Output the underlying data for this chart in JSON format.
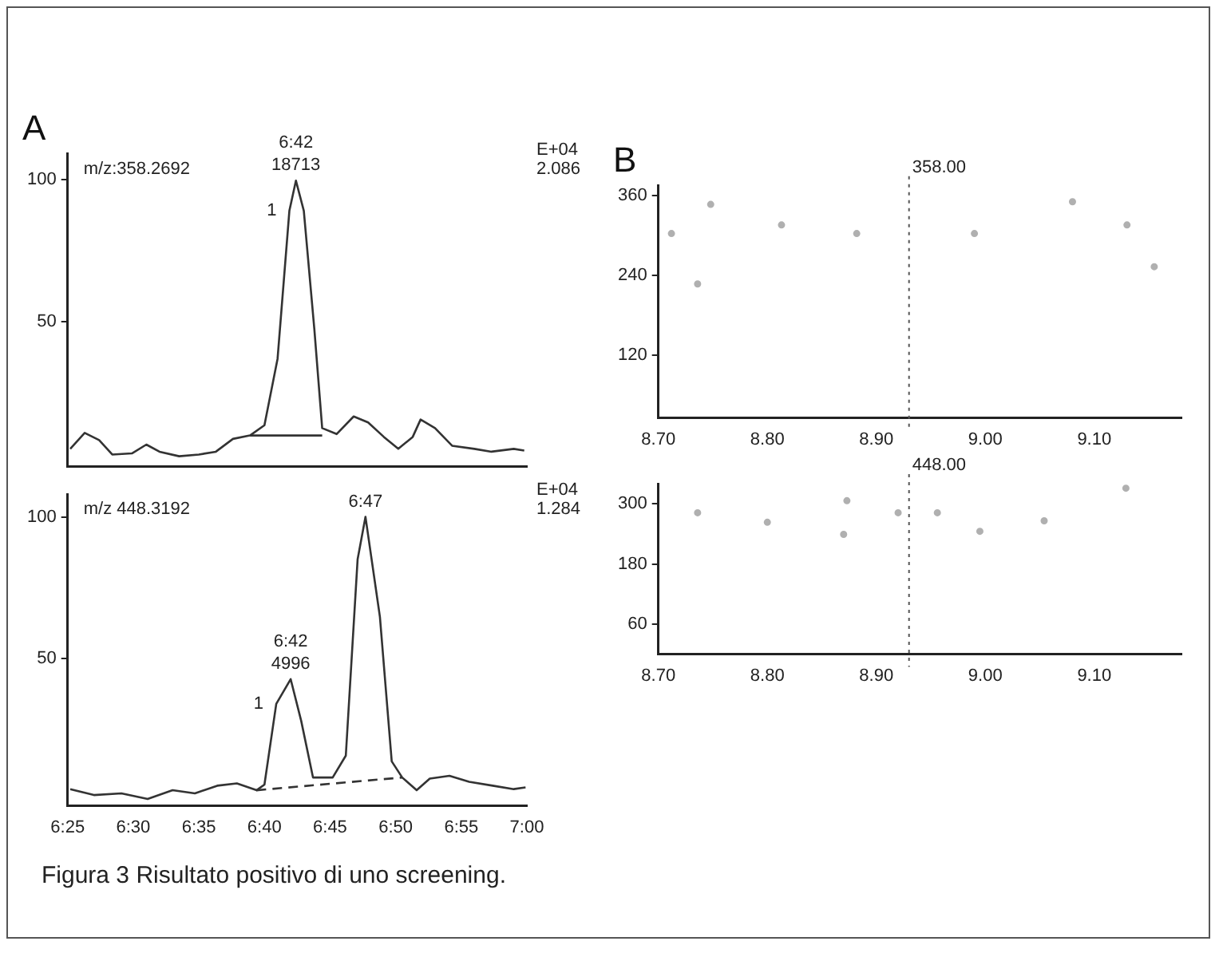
{
  "chart_data": [
    {
      "type": "line",
      "title": "A",
      "annotations": [
        "m/z:358.2692",
        "E+04",
        "2.086",
        {
          "text": "6:42",
          "x": 402.4,
          "y": 99.6
        },
        {
          "text": "18713",
          "x": 402.4,
          "y": 99.6
        },
        {
          "text": "1",
          "x": 401.9,
          "y": 89
        }
      ],
      "xlim": [
        385,
        420
      ],
      "xticks": [
        {
          "value": 385,
          "label": null
        },
        {
          "value": 390,
          "label": null
        },
        {
          "value": 395,
          "label": null
        },
        {
          "value": 400,
          "label": null
        },
        {
          "value": 405,
          "label": null
        },
        {
          "value": 410,
          "label": null
        },
        {
          "value": 415,
          "label": null
        },
        {
          "value": 420,
          "label": null
        }
      ],
      "ylim": [
        -1,
        109
      ],
      "yticks": [
        50,
        100
      ],
      "tick_labels": "y",
      "grid": false,
      "legend": false,
      "marker": "none",
      "series": [
        {
          "color": "#333333",
          "x": [
            385.2,
            386.3,
            387.4,
            388.4,
            389.9,
            391,
            392,
            393.5,
            395,
            396.3,
            397.6,
            398.9,
            400,
            401,
            401.9,
            402.4,
            403,
            403.8,
            404.4,
            405.5,
            406.8,
            407.9,
            409.1,
            410.2,
            411.3,
            411.9,
            413,
            414.3,
            416,
            417.3,
            419,
            419.8
          ],
          "values": [
            5.3,
            10.9,
            8.4,
            3.3,
            3.7,
            6.8,
            4.3,
            2.7,
            3.3,
            4.3,
            8.8,
            10,
            13.6,
            37,
            89,
            99.6,
            89,
            47.5,
            12.6,
            10.5,
            16.7,
            14.6,
            9.5,
            5.3,
            9.5,
            15.6,
            12.6,
            6.4,
            5.3,
            4.3,
            5.3,
            4.7
          ]
        },
        {
          "color": "#333333",
          "x": [
            398.9,
            404.4
          ],
          "values": [
            10,
            10
          ]
        }
      ]
    },
    {
      "type": "line",
      "annotations": [
        "m/z 448.3192",
        "E+04",
        "1.284",
        {
          "text": "6:47",
          "x": 407.7,
          "y": 100
        },
        {
          "text": "6:42",
          "x": 402,
          "y": 42.7
        },
        {
          "text": "4996",
          "x": 402,
          "y": 42.7
        },
        {
          "text": "1",
          "x": 400.9,
          "y": 34
        }
      ],
      "xlim": [
        385,
        420
      ],
      "xticks": [
        {
          "value": 385,
          "label": "6:25"
        },
        {
          "value": 390,
          "label": "6:30"
        },
        {
          "value": 395,
          "label": "6:35"
        },
        {
          "value": 400,
          "label": "6:40"
        },
        {
          "value": 405,
          "label": "6:45"
        },
        {
          "value": 410,
          "label": "6:50"
        },
        {
          "value": 415,
          "label": "6:55"
        },
        {
          "value": 420,
          "label": "7:00"
        }
      ],
      "ylim": [
        -2,
        108
      ],
      "yticks": [
        50,
        100
      ],
      "grid": false,
      "legend": false,
      "marker": "none",
      "series": [
        {
          "color": "#333333",
          "x": [
            385.2,
            387,
            389.1,
            391.1,
            393,
            394.7,
            396.4,
            397.9,
            399.4,
            400,
            400.9,
            402,
            402.8,
            403.7,
            405.2,
            406.2,
            407.1,
            407.7,
            408.8,
            409.7,
            410.5,
            411.6,
            412.6,
            414.1,
            415.6,
            417.4,
            419,
            419.9
          ],
          "values": [
            3.9,
            1.8,
            2.4,
            0.4,
            3.5,
            2.4,
            5.1,
            5.9,
            3.5,
            5.5,
            34,
            42.7,
            28,
            8,
            8,
            15.7,
            85,
            100,
            64.7,
            13.7,
            8,
            3.5,
            7.6,
            8.6,
            6.5,
            5.1,
            3.9,
            4.5
          ]
        },
        {
          "color": "#333333",
          "line_style": "dashed",
          "x": [
            399.4,
            410.5
          ],
          "values": [
            3.5,
            8
          ]
        }
      ]
    },
    {
      "type": "scatter",
      "title": "B",
      "annotations": [
        "358.00"
      ],
      "xlim": [
        8.7,
        9.18
      ],
      "xticks": [
        {
          "value": 8.7,
          "label": "8.70"
        },
        {
          "value": 8.8,
          "label": "8.80"
        },
        {
          "value": 8.9,
          "label": "8.90"
        },
        {
          "value": 9,
          "label": "9.00"
        },
        {
          "value": 9.1,
          "label": "9.10"
        }
      ],
      "ylim": [
        25,
        375
      ],
      "yticks": [
        120,
        240,
        360
      ],
      "grid": false,
      "legend": false,
      "marker": "circle",
      "ref_lines": [
        {
          "axis": "x",
          "value": 8.93,
          "line_style": "dotted"
        }
      ],
      "series": [
        {
          "color": "#b0b0b0",
          "x": [
            8.712,
            8.736,
            8.748,
            8.813,
            8.882,
            8.99,
            9.08,
            9.13,
            9.155
          ],
          "values": [
            303,
            227,
            347,
            316,
            303,
            303,
            351,
            316,
            253
          ]
        }
      ]
    },
    {
      "type": "scatter",
      "annotations": [
        "448.00"
      ],
      "xlim": [
        8.7,
        9.18
      ],
      "xticks": [
        {
          "value": 8.7,
          "label": "8.70"
        },
        {
          "value": 8.8,
          "label": "8.80"
        },
        {
          "value": 8.9,
          "label": "8.90"
        },
        {
          "value": 9,
          "label": "9.00"
        },
        {
          "value": 9.1,
          "label": "9.10"
        }
      ],
      "ylim": [
        0,
        340
      ],
      "yticks": [
        60,
        180,
        300
      ],
      "grid": false,
      "legend": false,
      "marker": "circle",
      "ref_lines": [
        {
          "axis": "x",
          "value": 8.93,
          "line_style": "dotted"
        }
      ],
      "series": [
        {
          "color": "#b0b0b0",
          "x": [
            8.736,
            8.8,
            8.87,
            8.873,
            8.92,
            8.956,
            8.995,
            9.054,
            9.129
          ],
          "values": [
            282,
            263,
            239,
            306,
            282,
            282,
            245,
            266,
            331
          ]
        }
      ]
    },
    {
      "type": "other",
      "annotations": [
        "Figura 3 Risultato positivo di uno screening."
      ]
    }
  ]
}
